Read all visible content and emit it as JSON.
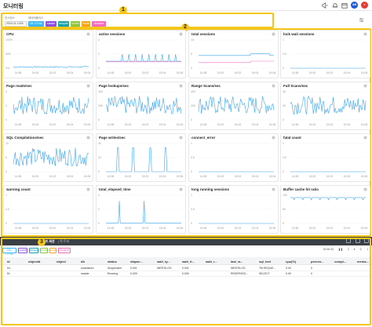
{
  "header": {
    "title": "모니터링",
    "icons": [
      "megaphone-icon",
      "bell-icon",
      "calendar-icon",
      "grid-icon"
    ],
    "avatar_text": "AB",
    "avatar_color": "#1e5bd8",
    "close_color": "#e33b3b",
    "close_text": "✕"
  },
  "filter": {
    "label_instance": "인스턴스",
    "label_database": "데이터베이스",
    "instance_value": "2024-11-1433",
    "chips": [
      {
        "label": "DB-TOTAL",
        "color": "#38b6f5"
      },
      {
        "label": "master",
        "color": "#8a4fe0"
      },
      {
        "label": "tempdb",
        "color": "#17a2a6"
      },
      {
        "label": "model",
        "color": "#8cc540"
      },
      {
        "label": "msdb",
        "color": "#f3a51e"
      },
      {
        "label": "dbname",
        "color": "#f26bbf"
      }
    ]
  },
  "callouts": [
    "1",
    "2",
    "3"
  ],
  "x_ticks": [
    "14:58",
    "15:00",
    "15:02",
    "15:04",
    "15:06"
  ],
  "cards": [
    {
      "title": "CPU",
      "yticks": [
        "100%",
        "50%",
        "0%"
      ]
    },
    {
      "title": "active sessions",
      "yticks": [
        "4",
        "2",
        "0"
      ]
    },
    {
      "title": "total sessions",
      "yticks": [
        "10",
        "5",
        "0"
      ]
    },
    {
      "title": "lock wait sessions",
      "yticks": [
        "1",
        "0.5",
        "0"
      ]
    },
    {
      "title": "Page reads/sec",
      "yticks": [
        "4",
        "2",
        "0"
      ]
    },
    {
      "title": "Page lookups/sec",
      "yticks": [
        "40K",
        "20K",
        "0"
      ]
    },
    {
      "title": "Range Scans/sec",
      "yticks": [
        "400",
        "200",
        "0"
      ]
    },
    {
      "title": "Full Scans/sec",
      "yticks": [
        "4K",
        "2K",
        "0"
      ]
    },
    {
      "title": "SQL Compilations/sec",
      "yticks": [
        "10",
        "5",
        "0"
      ]
    },
    {
      "title": "Page writes/sec",
      "yticks": [
        "40",
        "20",
        "0"
      ]
    },
    {
      "title": "connect_error",
      "yticks": [
        "1",
        "0.5",
        "0"
      ]
    },
    {
      "title": "fatal count",
      "yticks": [
        "1",
        "0.5",
        "0"
      ]
    },
    {
      "title": "warning count",
      "yticks": [
        "1",
        "0.5",
        "0"
      ]
    },
    {
      "title": "total_elapsed_time",
      "yticks": [
        "4",
        "2",
        "0"
      ]
    },
    {
      "title": "long running sessions",
      "yticks": [
        "1",
        "0.5",
        "0"
      ]
    },
    {
      "title": "Buffer cache hit ratio",
      "yticks": [
        "100",
        "50",
        "0"
      ]
    }
  ],
  "bottom": {
    "title": "액티브 세션",
    "subtitle": "| 락 트리",
    "chips": [
      {
        "label": "DB-TOTAL",
        "color": "#38b6f5"
      },
      {
        "label": "master",
        "color": "#8a4fe0"
      },
      {
        "label": "tempdb",
        "color": "#17a2a6"
      },
      {
        "label": "model",
        "color": "#8cc540"
      },
      {
        "label": "msdb",
        "color": "#f3a51e"
      },
      {
        "label": "dbname",
        "color": "#f26bbf"
      }
    ],
    "time": "15:06:33",
    "count": "2",
    "columns": [
      "id",
      "objectid",
      "object",
      "db",
      "status",
      "elapse...",
      "wait_ty...",
      "wait_ti...",
      "wait_r...",
      "last_w...",
      "sql_text",
      "cpu(%)",
      "percen...",
      "compl...",
      "mema..."
    ],
    "rows": [
      [
        "54",
        "",
        "",
        "smartstore",
        "Suspended",
        "0.001",
        "WRITELOG",
        "0.001",
        "",
        "WRITELOG",
        "TM REQUE...",
        "0.00",
        "0",
        "",
        ""
      ],
      [
        "51",
        "",
        "",
        "master",
        "Running",
        "0.009",
        "",
        "0.000",
        "",
        "RESERVED...",
        "SELECT",
        "0.00",
        "0",
        "",
        ""
      ]
    ]
  }
}
